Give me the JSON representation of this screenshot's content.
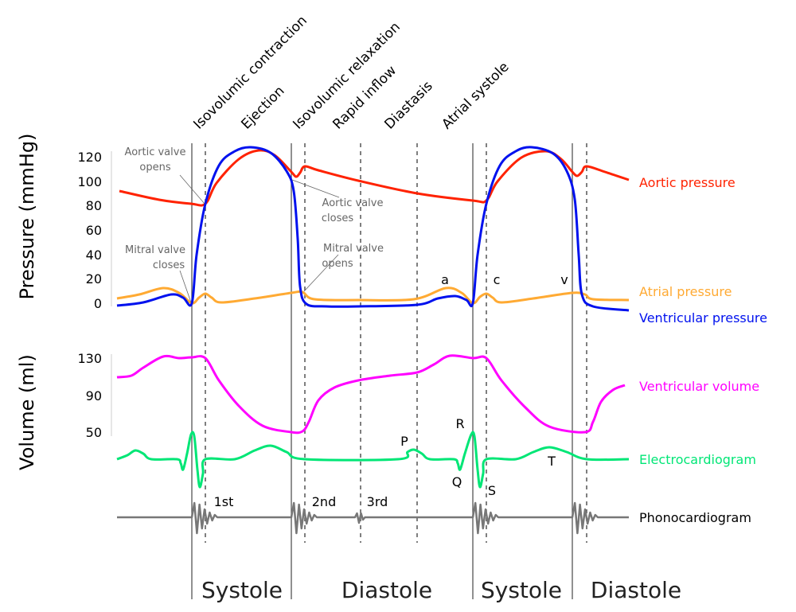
{
  "phases": [
    "Isovolumic contraction",
    "Ejection",
    "Isovolumic relaxation",
    "Rapid inflow",
    "Diastasis",
    "Atrial systole"
  ],
  "pressure_axis": {
    "title": "Pressure (mmHg)",
    "ticks": [
      "120",
      "100",
      "80",
      "60",
      "40",
      "20",
      "0"
    ]
  },
  "volume_axis": {
    "title": "Volume (ml)",
    "ticks": [
      "130",
      "90",
      "50"
    ]
  },
  "annotations": {
    "aortic_opens": [
      "Aortic valve",
      "opens"
    ],
    "aortic_closes": [
      "Aortic valve",
      "closes"
    ],
    "mitral_closes": [
      "Mitral valve",
      "closes"
    ],
    "mitral_opens": [
      "Mitral valve",
      "opens"
    ]
  },
  "wave_letters": {
    "a": "a",
    "c": "c",
    "v": "v",
    "P": "P",
    "R": "R",
    "Q": "Q",
    "S": "S",
    "T": "T"
  },
  "heart_sounds": [
    "1st",
    "2nd",
    "3rd"
  ],
  "series": [
    {
      "name": "Aortic pressure",
      "color": "#ff2200"
    },
    {
      "name": "Atrial pressure",
      "color": "#ffaa33"
    },
    {
      "name": "Ventricular pressure",
      "color": "#0011ee"
    },
    {
      "name": "Ventricular volume",
      "color": "#ff00ff"
    },
    {
      "name": "Electrocardiogram",
      "color": "#00e676"
    },
    {
      "name": "Phonocardiogram",
      "color": "#000000"
    }
  ],
  "periods": [
    "Systole",
    "Diastole",
    "Systole",
    "Diastole"
  ]
}
